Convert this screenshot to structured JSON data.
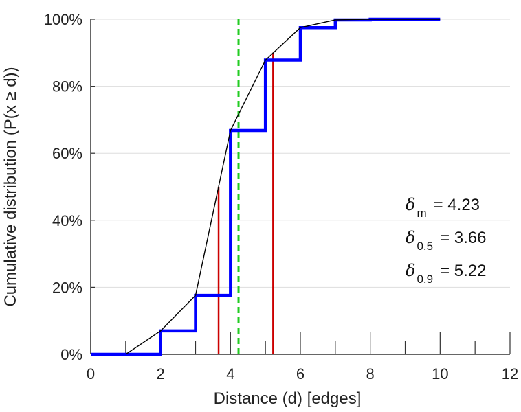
{
  "chart_data": {
    "type": "line",
    "title": "",
    "xlabel": "Distance (d) [edges]",
    "ylabel": "Cumulative distribution (P(x ≥ d))",
    "xlim": [
      0,
      12
    ],
    "ylim": [
      0,
      100
    ],
    "grid": "horizontal",
    "x_ticks": [
      "0",
      "2",
      "4",
      "6",
      "8",
      "10",
      "12"
    ],
    "y_ticks": [
      "0%",
      "20%",
      "40%",
      "60%",
      "80%",
      "100%"
    ],
    "colors": {
      "step": "#0000ff",
      "smooth": "#000000",
      "percentile": "#cc0000",
      "mean": "#22cc22"
    },
    "series": [
      {
        "style": "step",
        "x": [
          0,
          1,
          2,
          3,
          4,
          5,
          6,
          7,
          8,
          9,
          10
        ],
        "y": [
          0,
          0,
          7,
          17.6,
          66.8,
          87.8,
          97.5,
          99.8,
          100,
          100,
          100
        ]
      },
      {
        "style": "line",
        "x": [
          1,
          2,
          3,
          4,
          5,
          6,
          7,
          8,
          9,
          10
        ],
        "y": [
          0,
          7,
          17.6,
          66.8,
          87.8,
          97.5,
          99.8,
          100,
          100,
          100
        ]
      }
    ],
    "vlines": [
      {
        "x": 3.66,
        "y": 50,
        "style": "solid",
        "color": "#cc0000"
      },
      {
        "x": 5.22,
        "y": 90,
        "style": "solid",
        "color": "#cc0000"
      },
      {
        "x": 4.23,
        "y": 100,
        "style": "dashed",
        "color": "#22cc22"
      }
    ],
    "annotations": [
      {
        "symbol": "δ",
        "sub": "m",
        "text": "= 4.23"
      },
      {
        "symbol": "δ",
        "sub": "0.5",
        "text": "= 3.66"
      },
      {
        "symbol": "δ",
        "sub": "0.9",
        "text": "= 5.22"
      }
    ]
  }
}
